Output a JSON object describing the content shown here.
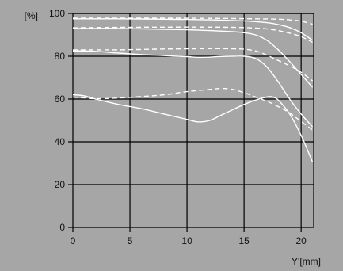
{
  "chart_data": {
    "type": "line",
    "ylabel": "[%]",
    "xlabel": "Y'[mm]",
    "xlim": [
      0,
      21.1
    ],
    "ylim": [
      0,
      100
    ],
    "x_ticks": [
      0,
      5,
      10,
      15,
      20
    ],
    "y_ticks": [
      0,
      20,
      40,
      60,
      80,
      100
    ],
    "grid": true,
    "colors": {
      "background": "#a6a6a6",
      "grid": "#000000",
      "lines": "#ffffff",
      "text": "#111111"
    },
    "series": [
      {
        "style": "solid",
        "x": [
          0,
          2,
          4,
          6,
          8,
          10,
          12,
          14,
          15,
          16,
          17,
          18,
          19,
          20,
          21
        ],
        "y": [
          97.5,
          97.5,
          97.5,
          97.4,
          97.3,
          97.2,
          97.0,
          96.7,
          96.5,
          96.2,
          95.7,
          94.8,
          93.4,
          91.0,
          87.5
        ]
      },
      {
        "style": "dashed",
        "x": [
          0,
          4,
          8,
          12,
          16,
          18,
          19,
          20,
          21
        ],
        "y": [
          97.8,
          97.8,
          97.8,
          97.7,
          97.5,
          97.3,
          97.0,
          96.4,
          95.0
        ]
      },
      {
        "style": "solid",
        "x": [
          0,
          2,
          4,
          6,
          8,
          10,
          12,
          14,
          15,
          16,
          17,
          18,
          19,
          20,
          21
        ],
        "y": [
          93.0,
          93.0,
          93.0,
          92.8,
          92.6,
          92.4,
          92.0,
          91.5,
          91.0,
          90.0,
          87.5,
          83.0,
          77.5,
          71.5,
          65.5
        ]
      },
      {
        "style": "dashed",
        "x": [
          0,
          4,
          8,
          12,
          14,
          16,
          17,
          18,
          19,
          20,
          21
        ],
        "y": [
          93.3,
          93.5,
          93.6,
          93.6,
          93.5,
          93.2,
          92.8,
          92.0,
          90.8,
          89.2,
          86.5
        ]
      },
      {
        "style": "solid",
        "x": [
          0,
          1,
          2,
          4,
          6,
          8,
          10,
          11,
          12,
          13,
          14,
          15,
          16,
          17,
          18,
          19,
          20,
          21
        ],
        "y": [
          82.5,
          82.5,
          82.3,
          81.5,
          80.8,
          80.3,
          79.8,
          79.5,
          79.6,
          79.9,
          80.0,
          80.0,
          79.0,
          75.0,
          68.0,
          60.0,
          53.0,
          47.0
        ]
      },
      {
        "style": "dashed",
        "x": [
          0,
          2,
          4,
          6,
          8,
          10,
          12,
          14,
          15,
          16,
          17,
          18,
          19,
          20,
          21
        ],
        "y": [
          83.0,
          83.0,
          83.0,
          83.2,
          83.4,
          83.5,
          83.6,
          83.5,
          83.3,
          82.5,
          80.5,
          78.0,
          75.5,
          72.5,
          68.5
        ]
      },
      {
        "style": "solid",
        "x": [
          0,
          1,
          2,
          4,
          6,
          8,
          10,
          11,
          12,
          13,
          14,
          15,
          16,
          17,
          17.5,
          18,
          19,
          20,
          21
        ],
        "y": [
          62.0,
          61.5,
          60.0,
          57.5,
          55.5,
          53.0,
          50.5,
          49.3,
          50.0,
          52.5,
          55.0,
          57.5,
          59.5,
          61.0,
          61.0,
          59.5,
          53.0,
          43.0,
          30.5
        ]
      },
      {
        "style": "dashed",
        "x": [
          0,
          2,
          4,
          6,
          8,
          10,
          12,
          13,
          14,
          15,
          16,
          17,
          18,
          19,
          20,
          21
        ],
        "y": [
          61.0,
          60.2,
          60.5,
          61.2,
          62.0,
          63.5,
          64.5,
          65.0,
          64.5,
          63.0,
          61.0,
          59.0,
          56.5,
          53.5,
          49.5,
          45.5
        ]
      }
    ]
  }
}
